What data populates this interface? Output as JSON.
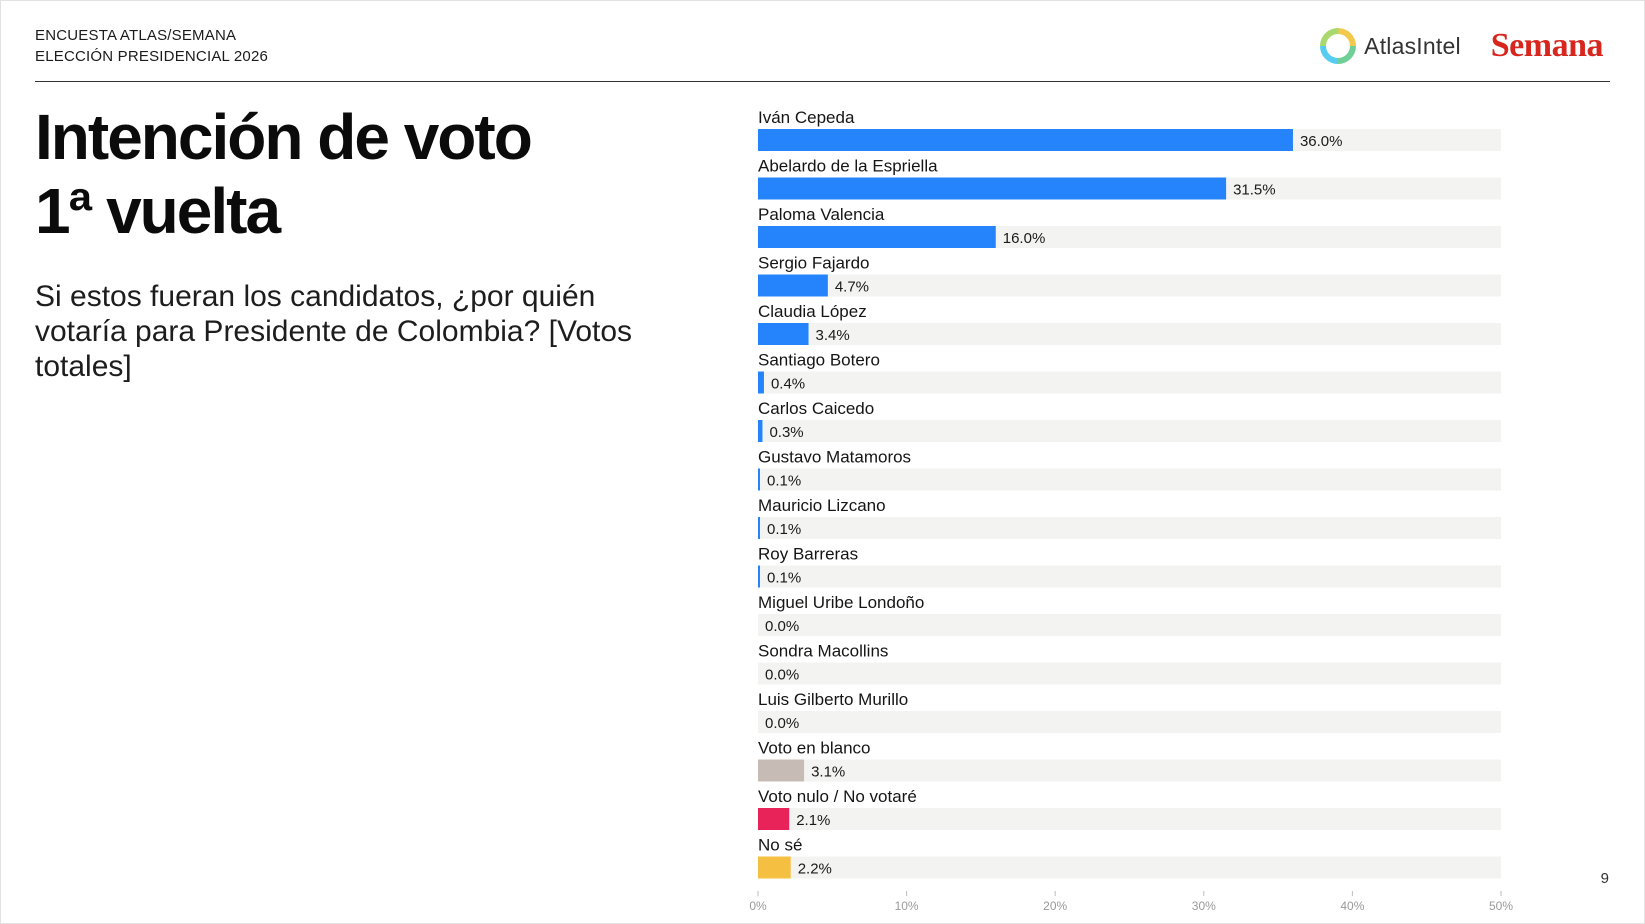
{
  "header": {
    "line1": "ENCUESTA ATLAS/SEMANA",
    "line2": "ELECCIÓN PRESIDENCIAL 2026"
  },
  "logos": {
    "atlas": "AtlasIntel",
    "semana": "Semana"
  },
  "title": {
    "line1": "Intención de voto",
    "line2": "1ª vuelta"
  },
  "question": "Si estos fueran los candidatos, ¿por quién votaría para Presidente de Colombia? [Votos totales]",
  "page_number": "9",
  "colors": {
    "candidate": "#2584fb",
    "blank": "#c7bcb5",
    "null": "#e8235a",
    "dont_know": "#f5bf42",
    "track": "#f3f3f1",
    "semana_red": "#d7261e"
  },
  "chart_data": {
    "type": "bar",
    "orientation": "horizontal",
    "categories": [
      "Iván Cepeda",
      "Abelardo de la Espriella",
      "Paloma Valencia",
      "Sergio Fajardo",
      "Claudia López",
      "Santiago Botero",
      "Carlos Caicedo",
      "Gustavo Matamoros",
      "Mauricio Lizcano",
      "Roy Barreras",
      "Miguel Uribe Londoño",
      "Sondra Macollins",
      "Luis Gilberto Murillo",
      "Voto en blanco",
      "Voto nulo / No votaré",
      "No sé"
    ],
    "values": [
      36.0,
      31.5,
      16.0,
      4.7,
      3.4,
      0.4,
      0.3,
      0.1,
      0.1,
      0.1,
      0.0,
      0.0,
      0.0,
      3.1,
      2.1,
      2.2
    ],
    "value_labels": [
      "36.0%",
      "31.5%",
      "16.0%",
      "4.7%",
      "3.4%",
      "0.4%",
      "0.3%",
      "0.1%",
      "0.1%",
      "0.1%",
      "0.0%",
      "0.0%",
      "0.0%",
      "3.1%",
      "2.1%",
      "2.2%"
    ],
    "bar_colors": [
      "#2584fb",
      "#2584fb",
      "#2584fb",
      "#2584fb",
      "#2584fb",
      "#2584fb",
      "#2584fb",
      "#2584fb",
      "#2584fb",
      "#2584fb",
      "#2584fb",
      "#2584fb",
      "#2584fb",
      "#c7bcb5",
      "#e8235a",
      "#f5bf42"
    ],
    "xlim": [
      0,
      50
    ],
    "xticks": [
      0,
      10,
      20,
      30,
      40,
      50
    ],
    "xtick_labels": [
      "0%",
      "10%",
      "20%",
      "30%",
      "40%",
      "50%"
    ],
    "grid": false,
    "legend": "none"
  }
}
